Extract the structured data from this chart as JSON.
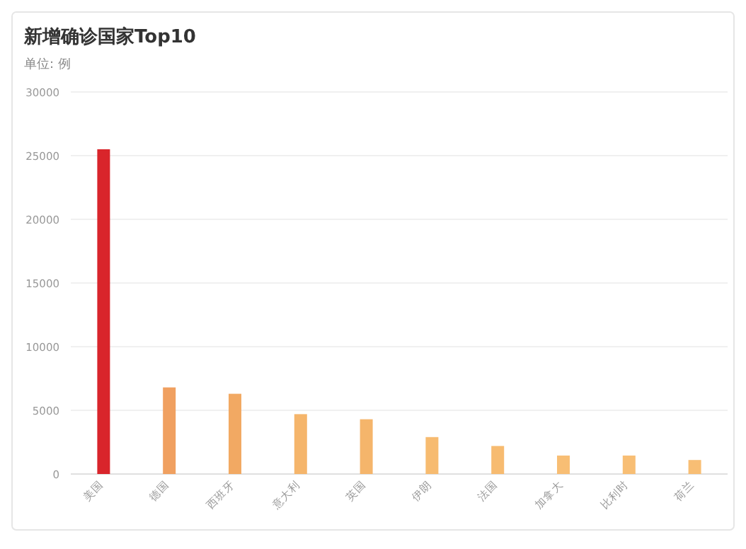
{
  "chart_data": {
    "type": "bar",
    "title": "新增确诊国家Top10",
    "subtitle": "单位: 例",
    "categories": [
      "美国",
      "德国",
      "西班牙",
      "意大利",
      "英国",
      "伊朗",
      "法国",
      "加拿大",
      "比利时",
      "荷兰"
    ],
    "values": [
      25500,
      6800,
      6300,
      4700,
      4300,
      2900,
      2200,
      1450,
      1450,
      1100
    ],
    "colors": [
      "#d9252b",
      "#f0a060",
      "#f2a963",
      "#f5b56b",
      "#f5b56b",
      "#f7bb70",
      "#f7bb70",
      "#f8be74",
      "#f8be74",
      "#f8be74"
    ],
    "ylim": [
      0,
      30000
    ],
    "yticks": [
      0,
      5000,
      10000,
      15000,
      20000,
      25000,
      30000
    ],
    "grid": "y"
  }
}
